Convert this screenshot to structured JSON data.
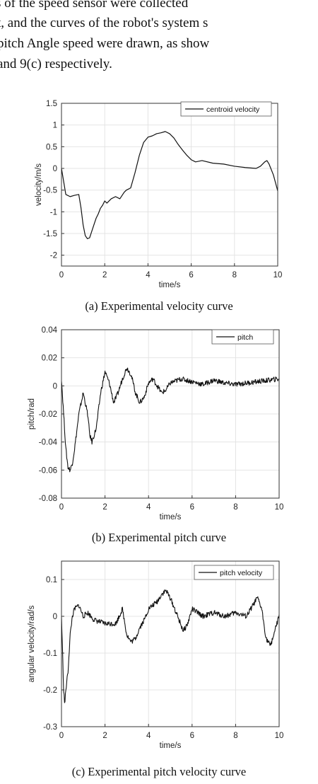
{
  "intro_lines": [
    "s of the speed sensor were collected",
    "t, and the curves of the robot's system s",
    "pitch Angle speed were drawn, as show",
    "and 9(c) respectively."
  ],
  "captions": [
    "(a) Experimental velocity curve",
    "(b) Experimental pitch curve",
    "(c) Experimental pitch velocity curve"
  ],
  "chart_data": [
    {
      "type": "line",
      "xlabel": "time/s",
      "ylabel": "velocity/m/s",
      "xlim": [
        0,
        10
      ],
      "ylim": [
        -2.25,
        1.5
      ],
      "xticks": [
        0,
        2,
        4,
        6,
        8,
        10
      ],
      "yticks": [
        -2,
        -1.5,
        -1,
        -0.5,
        0,
        0.5,
        1,
        1.5
      ],
      "legend": "top-right",
      "grid": true,
      "series": [
        {
          "name": "centroid velocity",
          "x": [
            0,
            0.1,
            0.2,
            0.4,
            0.6,
            0.8,
            0.9,
            1.0,
            1.1,
            1.2,
            1.3,
            1.4,
            1.5,
            1.6,
            1.7,
            1.8,
            1.9,
            2.0,
            2.1,
            2.3,
            2.5,
            2.7,
            2.9,
            3.0,
            3.2,
            3.4,
            3.6,
            3.8,
            4.0,
            4.2,
            4.4,
            4.6,
            4.8,
            5.0,
            5.2,
            5.4,
            5.6,
            5.8,
            6.0,
            6.2,
            6.5,
            7.0,
            7.5,
            8.0,
            8.5,
            9.0,
            9.2,
            9.4,
            9.5,
            9.6,
            9.8,
            10.0
          ],
          "y": [
            0,
            -0.3,
            -0.6,
            -0.65,
            -0.62,
            -0.6,
            -0.9,
            -1.3,
            -1.55,
            -1.62,
            -1.6,
            -1.45,
            -1.3,
            -1.15,
            -1.05,
            -0.92,
            -0.85,
            -0.75,
            -0.8,
            -0.7,
            -0.65,
            -0.7,
            -0.55,
            -0.5,
            -0.45,
            -0.1,
            0.3,
            0.6,
            0.72,
            0.75,
            0.8,
            0.82,
            0.85,
            0.8,
            0.7,
            0.55,
            0.42,
            0.3,
            0.2,
            0.15,
            0.18,
            0.12,
            0.1,
            0.05,
            0.02,
            0.0,
            0.05,
            0.15,
            0.18,
            0.1,
            -0.15,
            -0.52
          ]
        }
      ]
    },
    {
      "type": "line",
      "xlabel": "time/s",
      "ylabel": "pitch/rad",
      "xlim": [
        0,
        10
      ],
      "ylim": [
        -0.08,
        0.04
      ],
      "xticks": [
        0,
        2,
        4,
        6,
        8,
        10
      ],
      "yticks": [
        -0.08,
        -0.06,
        -0.04,
        -0.02,
        0,
        0.02,
        0.04
      ],
      "legend": "top-right",
      "grid": true,
      "series": [
        {
          "name": "pitch",
          "x": [
            0,
            0.1,
            0.2,
            0.3,
            0.4,
            0.5,
            0.6,
            0.8,
            1.0,
            1.2,
            1.3,
            1.4,
            1.6,
            1.8,
            2.0,
            2.2,
            2.4,
            2.6,
            2.8,
            3.0,
            3.2,
            3.4,
            3.6,
            3.8,
            4.0,
            4.2,
            4.4,
            4.6,
            4.8,
            5.0,
            5.5,
            6.0,
            6.5,
            7.0,
            7.5,
            8.0,
            8.5,
            9.0,
            9.5,
            10.0
          ],
          "y": [
            0.005,
            -0.02,
            -0.045,
            -0.058,
            -0.06,
            -0.055,
            -0.045,
            -0.02,
            -0.005,
            -0.02,
            -0.035,
            -0.04,
            -0.03,
            -0.005,
            0.01,
            0.002,
            -0.012,
            -0.005,
            0.005,
            0.013,
            0.008,
            -0.005,
            -0.012,
            -0.008,
            0.002,
            0.005,
            0.0,
            -0.005,
            -0.003,
            0.002,
            0.005,
            0.003,
            0.001,
            0.004,
            0.002,
            0.001,
            0.002,
            0.003,
            0.004,
            0.005
          ]
        }
      ]
    },
    {
      "type": "line",
      "xlabel": "time/s",
      "ylabel": "angular velocity/rad/s",
      "xlim": [
        0,
        10
      ],
      "ylim": [
        -0.3,
        0.15
      ],
      "xticks": [
        0,
        2,
        4,
        6,
        8,
        10
      ],
      "yticks": [
        -0.3,
        -0.2,
        -0.1,
        0,
        0.1
      ],
      "legend": "top-right",
      "grid": true,
      "series": [
        {
          "name": "pitch velocity",
          "x": [
            0,
            0.1,
            0.15,
            0.2,
            0.3,
            0.4,
            0.5,
            0.6,
            0.8,
            1.0,
            1.2,
            1.5,
            2.0,
            2.5,
            2.8,
            3.0,
            3.2,
            3.4,
            3.6,
            3.8,
            4.0,
            4.2,
            4.4,
            4.6,
            4.8,
            5.0,
            5.2,
            5.4,
            5.6,
            5.8,
            6.0,
            6.5,
            7.0,
            7.5,
            8.0,
            8.5,
            9.0,
            9.2,
            9.4,
            9.6,
            9.8,
            10.0
          ],
          "y": [
            0,
            -0.2,
            -0.24,
            -0.2,
            -0.15,
            -0.05,
            0.0,
            0.02,
            0.03,
            0.0,
            0.01,
            -0.01,
            -0.02,
            -0.02,
            0.02,
            -0.05,
            -0.07,
            -0.06,
            -0.03,
            -0.01,
            0.02,
            0.03,
            0.04,
            0.06,
            0.07,
            0.05,
            0.02,
            -0.01,
            -0.04,
            -0.02,
            0.02,
            0.0,
            0.01,
            0.0,
            0.01,
            0.0,
            0.05,
            0.02,
            -0.06,
            -0.08,
            -0.04,
            0.0
          ]
        }
      ]
    }
  ]
}
